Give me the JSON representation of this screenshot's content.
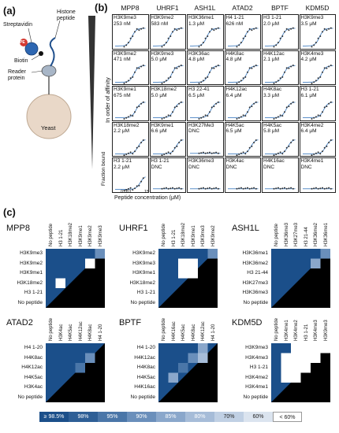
{
  "panel_a": {
    "label": "(a)",
    "histone_peptide": "Histone peptide",
    "streptavidin": "Streptavidin",
    "biotin": "Biotin",
    "reader_protein": "Reader protein",
    "yeast": "Yeast",
    "pe": "PE"
  },
  "panel_b": {
    "label": "(b)",
    "columns": [
      "MPP8",
      "UHRF1",
      "ASH1L",
      "ATAD2",
      "BPTF",
      "KDM5D"
    ],
    "y_side_label": "In order of affinity",
    "ylabel": "Fraction bound",
    "xlabel": "Peptide concentration (μM)",
    "xtick_min": "0.001",
    "xtick_max": "15",
    "cells": [
      [
        {
          "peptide": "H3K9me3",
          "kd": "253 nM"
        },
        {
          "peptide": "H3K9me2",
          "kd": "583 nM"
        },
        {
          "peptide": "H3K36me1",
          "kd": "1.3 μM"
        },
        {
          "peptide": "H4 1-21",
          "kd": "626 nM"
        },
        {
          "peptide": "H3 1-21",
          "kd": "2.0 μM"
        },
        {
          "peptide": "H3K9me3",
          "kd": "3.5 μM"
        }
      ],
      [
        {
          "peptide": "H3K9me2",
          "kd": "471 nM"
        },
        {
          "peptide": "H3K9me3",
          "kd": "5.0 μM"
        },
        {
          "peptide": "H3K36ac",
          "kd": "4.8 μM"
        },
        {
          "peptide": "H4K8ac",
          "kd": "4.8 μM"
        },
        {
          "peptide": "H4K12ac",
          "kd": "2.1 μM"
        },
        {
          "peptide": "H3K4me3",
          "kd": "4.2 μM"
        }
      ],
      [
        {
          "peptide": "H3K9me1",
          "kd": "675 nM"
        },
        {
          "peptide": "H3K18me2",
          "kd": "5.0 μM"
        },
        {
          "peptide": "H3 22-41",
          "kd": "6.5 μM"
        },
        {
          "peptide": "H4K12ac",
          "kd": "6.4 μM"
        },
        {
          "peptide": "H4K8ac",
          "kd": "3.3 μM"
        },
        {
          "peptide": "H3 1-21",
          "kd": "6.1 μM"
        }
      ],
      [
        {
          "peptide": "H3K18me2",
          "kd": "2.2 μM"
        },
        {
          "peptide": "H3K9me1",
          "kd": "6.6 μM"
        },
        {
          "peptide": "H3K27Me3",
          "kd": "DNC"
        },
        {
          "peptide": "H4K5ac",
          "kd": "6.5 μM"
        },
        {
          "peptide": "H4K5ac",
          "kd": "5.8 μM"
        },
        {
          "peptide": "H3K4me2",
          "kd": "6.4 μM"
        }
      ],
      [
        {
          "peptide": "H3 1-21",
          "kd": "2.2 μM"
        },
        {
          "peptide": "H3 1-21",
          "kd": "DNC"
        },
        {
          "peptide": "H3K36me3",
          "kd": "DNC"
        },
        {
          "peptide": "H3K4ac",
          "kd": "DNC"
        },
        {
          "peptide": "H4K16ac",
          "kd": "DNC"
        },
        {
          "peptide": "H3K4me1",
          "kd": "DNC"
        }
      ]
    ]
  },
  "panel_c": {
    "label": "(c)",
    "heatmaps": [
      {
        "title": "MPP8",
        "cols": [
          "No peptide",
          "H3 1-21",
          "H3K18me2",
          "H3K9me1",
          "H3K9me2",
          "H3K9me3"
        ],
        "rows": [
          "H3K9me3",
          "H3K9me2",
          "H3K9me1",
          "H3K18me2",
          "H3 1-21",
          "No peptide"
        ]
      },
      {
        "title": "UHRF1",
        "cols": [
          "No peptide",
          "H3 1-21",
          "H3K18me2",
          "H3K9me1",
          "H3K9me3",
          "H3K9me2"
        ],
        "rows": [
          "H3K9me2",
          "H3K9me3",
          "H3K9me1",
          "H3K18me2",
          "H3 1-21",
          "No peptide"
        ]
      },
      {
        "title": "ASH1L",
        "cols": [
          "No peptide",
          "H3K36me3",
          "H3K27me3",
          "H3 21-44",
          "H3K36me2",
          "H3K36me1"
        ],
        "rows": [
          "H3K36me1",
          "H3K36me2",
          "H3 21-44",
          "H3K27me3",
          "H3K36me3",
          "No peptide"
        ]
      },
      {
        "title": "ATAD2",
        "cols": [
          "No peptide",
          "H3K4ac",
          "H4K5ac",
          "H4K12ac",
          "H4K8ac",
          "H4 1-20"
        ],
        "rows": [
          "H4 1-20",
          "H4K8ac",
          "H4K12ac",
          "H4K5ac",
          "H3K4ac",
          "No peptide"
        ]
      },
      {
        "title": "BPTF",
        "cols": [
          "No peptide",
          "H4K16ac",
          "H4K5ac",
          "H4K8ac",
          "H4K12ac",
          "H4 1-20"
        ],
        "rows": [
          "H4 1-20",
          "H4K12ac",
          "H4K8ac",
          "H4K5ac",
          "H4K16ac",
          "No peptide"
        ]
      },
      {
        "title": "KDM5D",
        "cols": [
          "No peptide",
          "H3K4me1",
          "H3K4me2",
          "H3 1-21",
          "H3K4me3",
          "H3K9me3"
        ],
        "rows": [
          "H3K9me3",
          "H3K4me3",
          "H3 1-21",
          "H3K4me2",
          "H3K4me1",
          "No peptide"
        ]
      }
    ],
    "legend": [
      "≥ 98.5%",
      "98%",
      "95%",
      "90%",
      "85%",
      "80%",
      "70%",
      "60%",
      "< 60%"
    ],
    "legend_colors": [
      "#1b4f8a",
      "#2e5f96",
      "#4a76a8",
      "#6a8fbb",
      "#8aa7cb",
      "#a6bcd8",
      "#c0d0e4",
      "#dbe4ef",
      "#ffffff"
    ]
  }
}
